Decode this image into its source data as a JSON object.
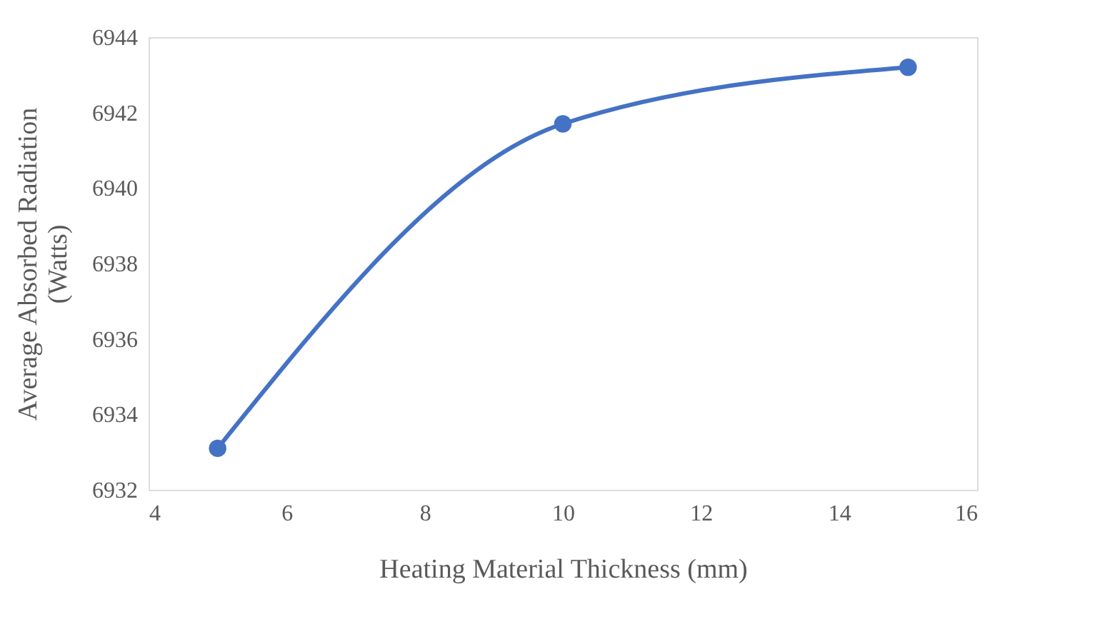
{
  "chart_data": {
    "type": "line",
    "xlabel": "Heating Material Thickness (mm)",
    "ylabel": "Average Absorbed Radiation (Watts)",
    "x": [
      5,
      10,
      15
    ],
    "series": [
      {
        "color": "#4472c4",
        "values": [
          6933.1,
          6941.7,
          6943.2
        ]
      }
    ],
    "xlim": [
      4,
      16
    ],
    "xticks": [
      4,
      6,
      8,
      10,
      12,
      14,
      16
    ],
    "ylim": [
      6932,
      6944
    ],
    "yticks": [
      6932,
      6934,
      6936,
      6938,
      6940,
      6942,
      6944
    ],
    "grid": false,
    "legend": false,
    "marker": "circle",
    "line_style": "solid"
  }
}
